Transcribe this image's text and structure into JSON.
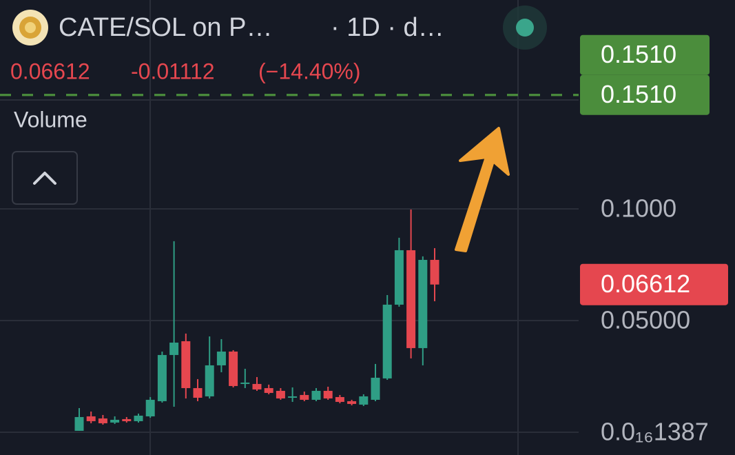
{
  "chart_data": {
    "type": "candlestick",
    "title": "CATE/SOL on P…",
    "subtitle": "· 1D · d…",
    "change": -0.01112,
    "change_pct": {
      "value": -14.4,
      "label": "(−14.40%)"
    },
    "pane_label": "Volume",
    "open": [
      0.00062,
      0.0071,
      0.00617,
      0.00432,
      0.00587,
      0.00494,
      0.0071,
      0.01389,
      0.03457,
      0.04074,
      0.01975,
      0.01605,
      0.02994,
      0.03611,
      0.02161,
      0.02161,
      0.01975,
      0.01852,
      0.01543,
      0.01667,
      0.01451,
      0.01852,
      0.01574,
      0.01389,
      0.01235,
      0.01451,
      0.02408,
      0.0571,
      0.08148,
      0.03766,
      0.07716
    ],
    "high": [
      0.0108,
      0.00926,
      0.00772,
      0.0071,
      0.00679,
      0.00833,
      0.01574,
      0.03611,
      0.0855,
      0.04414,
      0.02377,
      0.0429,
      0.04167,
      0.03673,
      0.0284,
      0.02469,
      0.0213,
      0.01975,
      0.02006,
      0.01821,
      0.01975,
      0.02037,
      0.01667,
      0.01451,
      0.01698,
      0.03056,
      0.06142,
      0.08704,
      0.0997,
      0.07871,
      0.08241
    ],
    "low": [
      0.00062,
      0.00401,
      0.0034,
      0.00371,
      0.00432,
      0.00432,
      0.00648,
      0.01327,
      0.01142,
      0.01512,
      0.01389,
      0.01512,
      0.02685,
      0.02006,
      0.01975,
      0.01852,
      0.01698,
      0.01451,
      0.01358,
      0.01389,
      0.01389,
      0.01451,
      0.01296,
      0.01204,
      0.01173,
      0.01389,
      0.02346,
      0.05618,
      0.03303,
      0.02994,
      0.05864
    ],
    "close": [
      0.00679,
      0.00494,
      0.00401,
      0.00556,
      0.00494,
      0.00741,
      0.01451,
      0.03457,
      0.04012,
      0.01975,
      0.01543,
      0.02994,
      0.03611,
      0.02068,
      0.02222,
      0.01914,
      0.01759,
      0.01512,
      0.01605,
      0.01451,
      0.01852,
      0.01512,
      0.01358,
      0.01266,
      0.01605,
      0.02439,
      0.0571,
      0.08148,
      0.03766,
      0.07716,
      0.06612
    ],
    "up_color": "#2f9e85",
    "down_color": "#e5474f",
    "ylim": [
      -0.0102,
      0.1935
    ],
    "yticks": [
      {
        "value": 0.1,
        "label": "0.1000"
      },
      {
        "value": 0.05,
        "label": "0.05000"
      },
      {
        "value": 1.387e-17,
        "label": "0.0₁₆1387"
      }
    ],
    "grid": true,
    "price_lines": [
      {
        "value": 0.151,
        "label": "0.1510",
        "color": "#4b8d3c"
      },
      {
        "value": 0.151,
        "label": "0.1510",
        "color": "#4b8d3c"
      }
    ]
  }
}
